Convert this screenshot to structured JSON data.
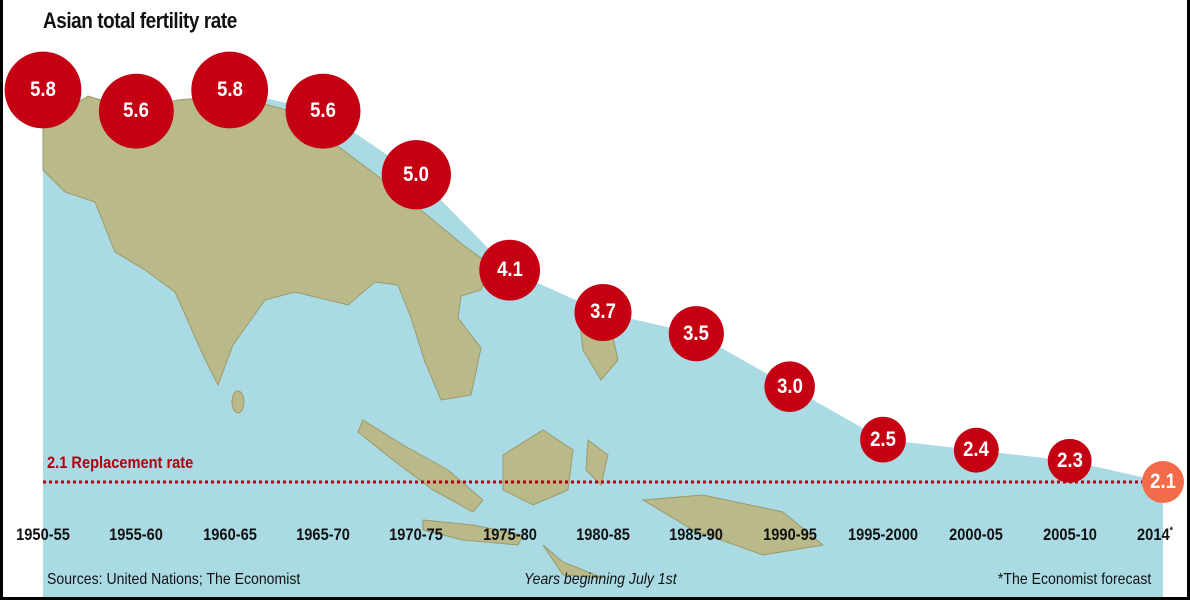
{
  "chart_data": {
    "type": "area",
    "title": "Asian total fertility rate",
    "categories": [
      "1950-55",
      "1955-60",
      "1960-65",
      "1965-70",
      "1970-75",
      "1975-80",
      "1980-85",
      "1985-90",
      "1990-95",
      "1995-2000",
      "2000-05",
      "2005-10",
      "2014"
    ],
    "forecast_marker": "*",
    "series": [
      {
        "values": [
          5.8,
          5.6,
          5.8,
          5.6,
          5.0,
          4.1,
          3.7,
          3.5,
          3.0,
          2.5,
          2.4,
          2.3,
          2.1
        ]
      }
    ],
    "value_labels": [
      "5.8",
      "5.6",
      "5.8",
      "5.6",
      "5.0",
      "4.1",
      "3.7",
      "3.5",
      "3.0",
      "2.5",
      "2.4",
      "2.3",
      "2.1"
    ],
    "reference_line": {
      "value": 2.1,
      "label": "2.1 Replacement rate"
    },
    "annotations": {
      "source": "Sources: United Nations; The Economist",
      "axis_note": "Years beginning July 1st",
      "forecast_note": "*The Economist forecast"
    },
    "ylim": [
      1.5,
      6.0
    ],
    "grid": false,
    "legend": "none",
    "colors": {
      "area": "#aadbe5",
      "bubble": "#c40012",
      "bubble_forecast": "#f26b4a",
      "reference_line": "#b10010",
      "land": "#b9b98a"
    }
  }
}
